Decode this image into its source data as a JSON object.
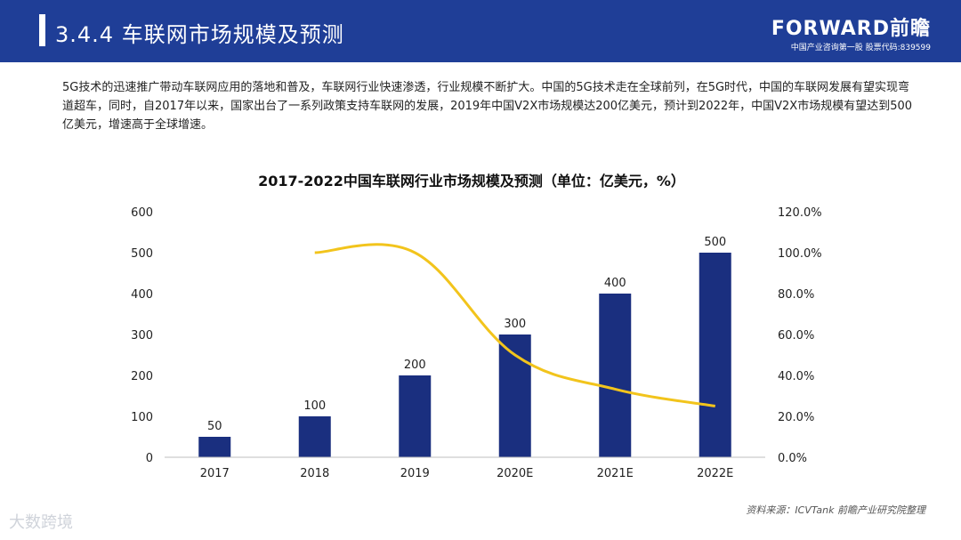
{
  "header": {
    "title": "3.4.4 车联网市场规模及预测",
    "brand_name": "FORWARD前瞻",
    "brand_tagline": "中国产业咨询第一股 股票代码:839599"
  },
  "intro_text": "5G技术的迅速推广带动车联网应用的落地和普及，车联网行业快速渗透，行业规模不断扩大。中国的5G技术走在全球前列，在5G时代，中国的车联网发展有望实现弯道超车，同时，自2017年以来，国家出台了一系列政策支持车联网的发展，2019年中国V2X市场规模达200亿美元，预计到2022年，中国V2X市场规模有望达到500亿美元，增速高于全球增速。",
  "source_text": "资料来源：ICVTank 前瞻产业研究院整理",
  "watermark_text": "大数跨境",
  "chart_data": {
    "type": "bar",
    "title": "2017-2022中国车联网行业市场规模及预测（单位：亿美元，%）",
    "categories": [
      "2017",
      "2018",
      "2019",
      "2020E",
      "2021E",
      "2022E"
    ],
    "series": [
      {
        "values": [
          50,
          100,
          200,
          300,
          400,
          500
        ],
        "axis": "left",
        "chart": "bar",
        "color": "#1a2f7f"
      },
      {
        "values": [
          null,
          1.0,
          1.0,
          0.5,
          0.333,
          0.25
        ],
        "axis": "right",
        "chart": "line",
        "color": "#f2c41c"
      }
    ],
    "ylim_left": [
      0,
      600
    ],
    "ylim_right": [
      0,
      1.2
    ],
    "left_ticks": [
      "0",
      "100",
      "200",
      "300",
      "400",
      "500",
      "600"
    ],
    "right_ticks": [
      "0.0%",
      "20.0%",
      "40.0%",
      "60.0%",
      "80.0%",
      "100.0%",
      "120.0%"
    ],
    "data_labels": [
      "50",
      "100",
      "200",
      "300",
      "400",
      "500"
    ],
    "grid": false
  }
}
